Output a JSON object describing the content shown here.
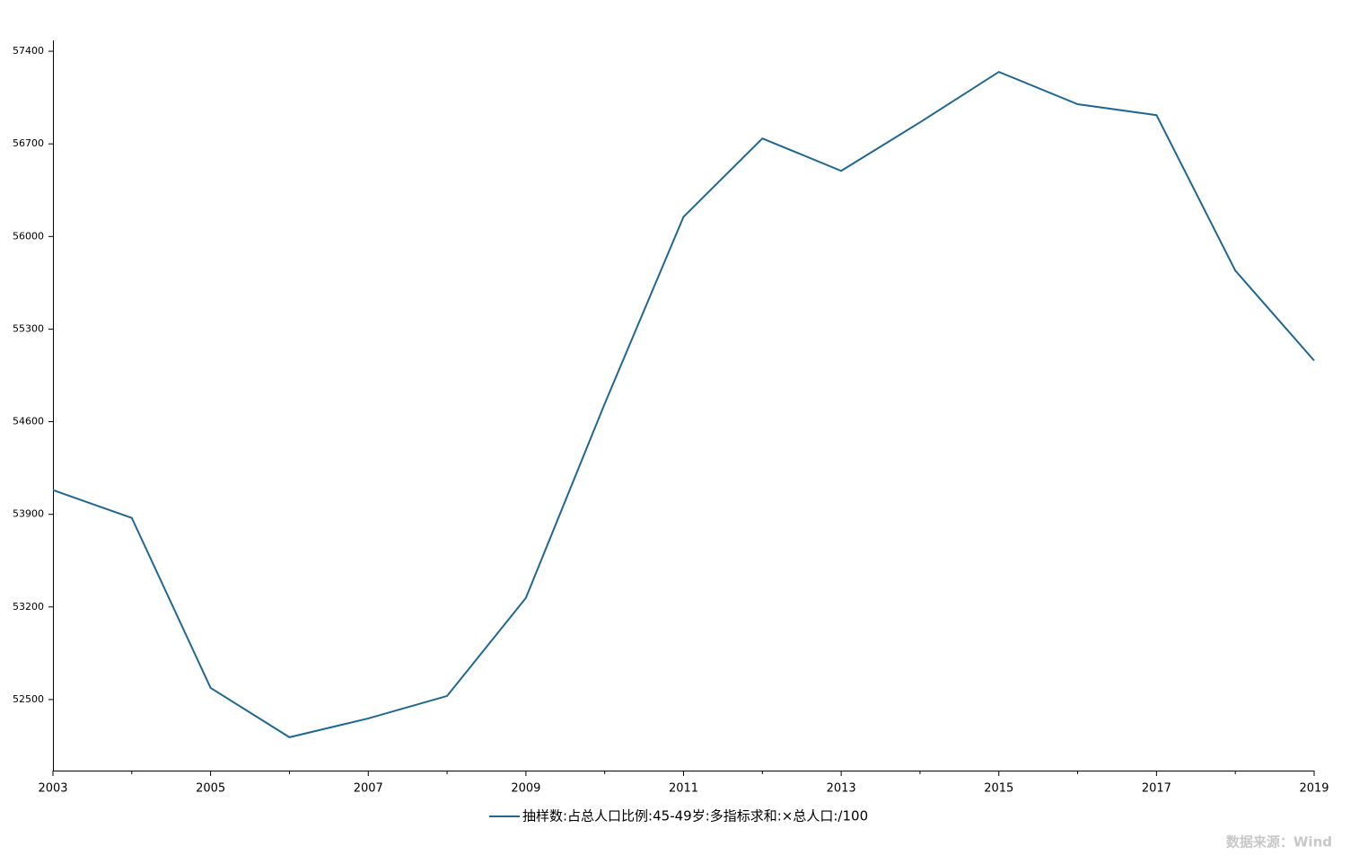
{
  "chart_data": {
    "type": "line",
    "x": [
      2003,
      2004,
      2005,
      2006,
      2007,
      2008,
      2009,
      2010,
      2011,
      2012,
      2013,
      2014,
      2015,
      2016,
      2017,
      2018,
      2019
    ],
    "series": [
      {
        "name": "抽样数:占总人口比例:45-49岁:多指标求和:×总人口:/100",
        "color": "#20688f",
        "values": [
          54083,
          53873,
          52588,
          52215,
          52357,
          52527,
          53268,
          54736,
          56149,
          56741,
          56496,
          56863,
          57244,
          57000,
          56917,
          55742,
          55062
        ]
      }
    ],
    "xlim": [
      2003,
      2019
    ],
    "xticks": [
      2003,
      2005,
      2007,
      2009,
      2011,
      2013,
      2015,
      2017,
      2019
    ],
    "xminorticks": [
      2004,
      2006,
      2008,
      2010,
      2012,
      2014,
      2016,
      2018
    ],
    "ylim": [
      51963,
      57482
    ],
    "yticks": [
      52500,
      53200,
      53900,
      54600,
      55300,
      56000,
      56700,
      57400
    ],
    "grid": false,
    "legend": "bottom",
    "source": "数据来源：Wind"
  }
}
